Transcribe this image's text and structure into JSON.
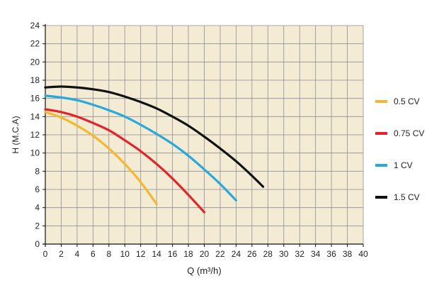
{
  "chart_data": {
    "type": "line",
    "title": "",
    "xlabel": "Q (m³/h)",
    "ylabel": "H (M.C.A)",
    "xlim": [
      0,
      40
    ],
    "ylim": [
      0,
      24
    ],
    "x_ticks": [
      0,
      2,
      4,
      6,
      8,
      10,
      12,
      14,
      16,
      18,
      20,
      22,
      24,
      26,
      28,
      30,
      32,
      34,
      36,
      38,
      40
    ],
    "y_ticks": [
      0,
      2,
      4,
      6,
      8,
      10,
      12,
      14,
      16,
      18,
      20,
      22,
      24
    ],
    "grid": true,
    "legend_position": "right",
    "colors": {
      "plot_background": "#f3ebd4",
      "grid": "#8f8f8f"
    },
    "series": [
      {
        "name": "0.5 CV",
        "color": "#f5b731",
        "x": [
          0,
          2,
          4,
          6,
          8,
          10,
          12,
          14
        ],
        "y": [
          14.5,
          13.9,
          13.0,
          11.9,
          10.5,
          8.8,
          6.8,
          4.4
        ]
      },
      {
        "name": "0.75 CV",
        "color": "#e3242b",
        "x": [
          0,
          2,
          4,
          6,
          8,
          10,
          12,
          14,
          16,
          18,
          20
        ],
        "y": [
          14.8,
          14.5,
          14.0,
          13.3,
          12.5,
          11.4,
          10.2,
          8.8,
          7.2,
          5.4,
          3.5
        ]
      },
      {
        "name": "1 CV",
        "color": "#28a8dc",
        "x": [
          0,
          2,
          4,
          6,
          8,
          10,
          12,
          14,
          16,
          18,
          20,
          22,
          24
        ],
        "y": [
          16.3,
          16.1,
          15.8,
          15.3,
          14.7,
          14.0,
          13.1,
          12.1,
          11.0,
          9.7,
          8.2,
          6.6,
          4.8
        ]
      },
      {
        "name": "1.5 CV",
        "color": "#111111",
        "x": [
          0,
          2,
          4,
          6,
          8,
          10,
          12,
          14,
          16,
          18,
          20,
          22,
          24,
          26,
          27.4
        ],
        "y": [
          17.2,
          17.3,
          17.2,
          17.0,
          16.7,
          16.2,
          15.6,
          14.9,
          14.0,
          13.0,
          11.8,
          10.5,
          9.1,
          7.5,
          6.3
        ]
      }
    ]
  }
}
